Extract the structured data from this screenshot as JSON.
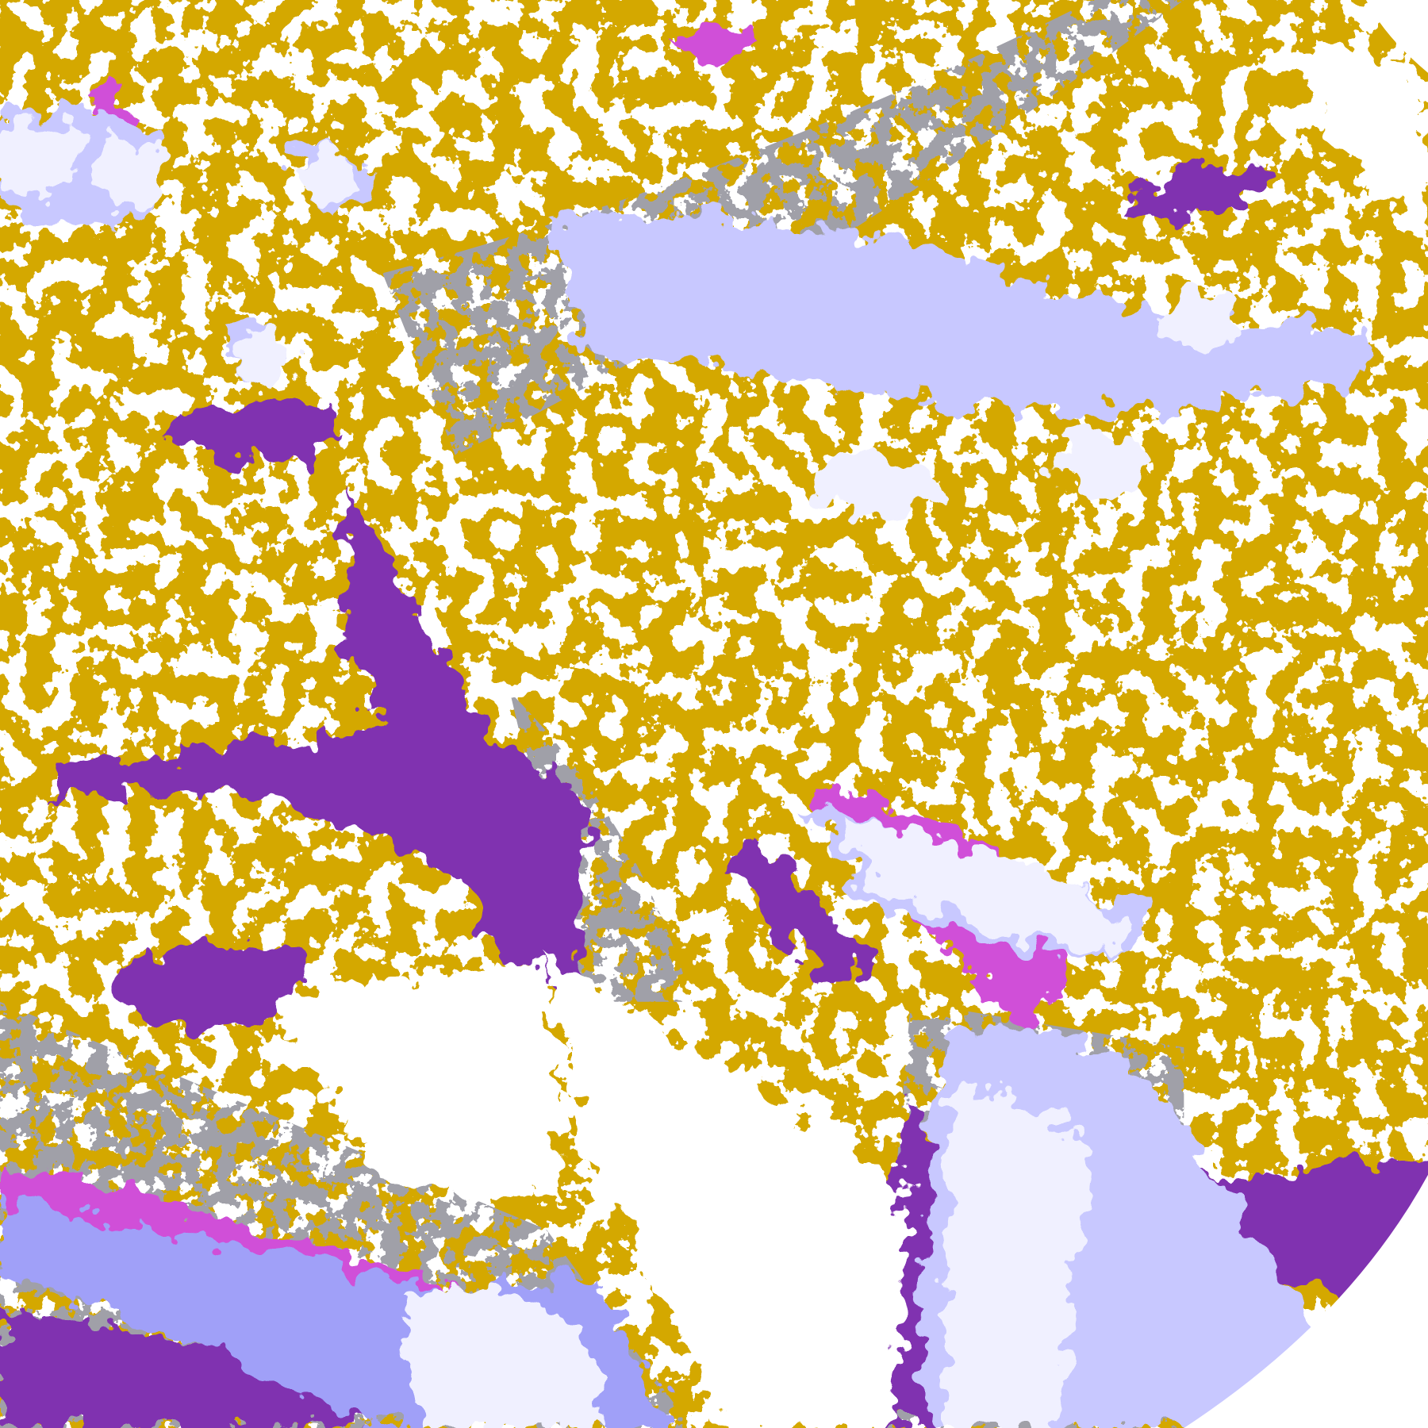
{
  "map": {
    "colors": {
      "clear": "#ffffff",
      "low_cloud": "#d4a800",
      "mid_cloud": "#a0a0a8",
      "high_thin": "#c8c8ff",
      "high_thick": "#a0a0f8",
      "deep_convective": "#f0f0ff",
      "fog_stratus": "#8030b0",
      "mixed": "#d050d8",
      "space": "#ffffff"
    }
  }
}
